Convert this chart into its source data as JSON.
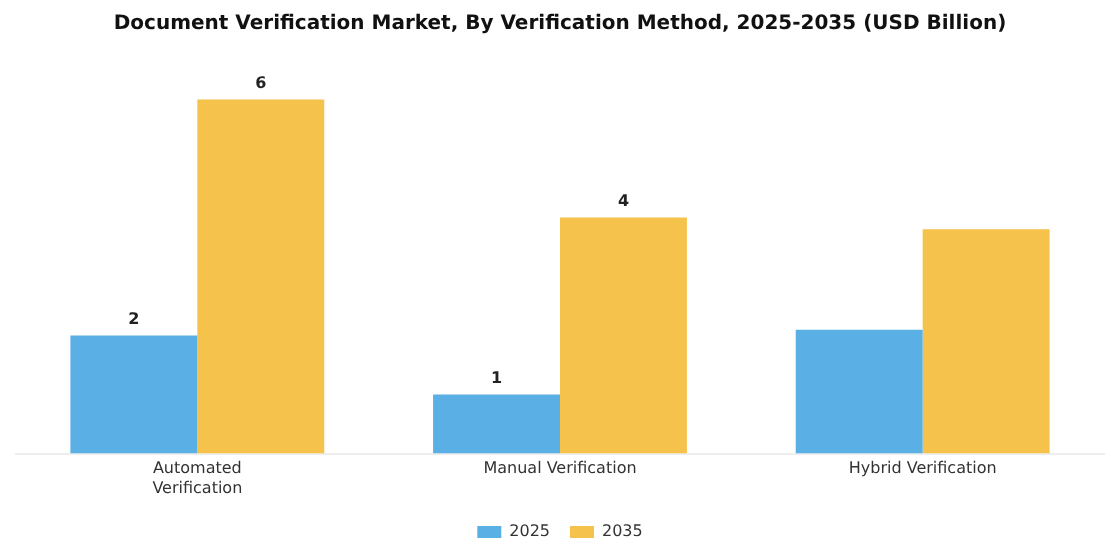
{
  "chart_data": {
    "type": "bar",
    "title": "Document Verification Market, By Verification Method, 2025-2035 (USD Billion)",
    "categories": [
      "Automated Verification",
      "Manual Verification",
      "Hybrid Verification"
    ],
    "legend": "bottom",
    "series": [
      {
        "name": "2025",
        "color": "#5ab0e4",
        "values": [
          2,
          1,
          2.1
        ],
        "value_labels": [
          "2",
          "1",
          null
        ]
      },
      {
        "name": "2035",
        "color": "#f5c24c",
        "values": [
          6,
          4,
          3.8
        ],
        "value_labels": [
          "6",
          "4",
          null
        ]
      }
    ]
  }
}
